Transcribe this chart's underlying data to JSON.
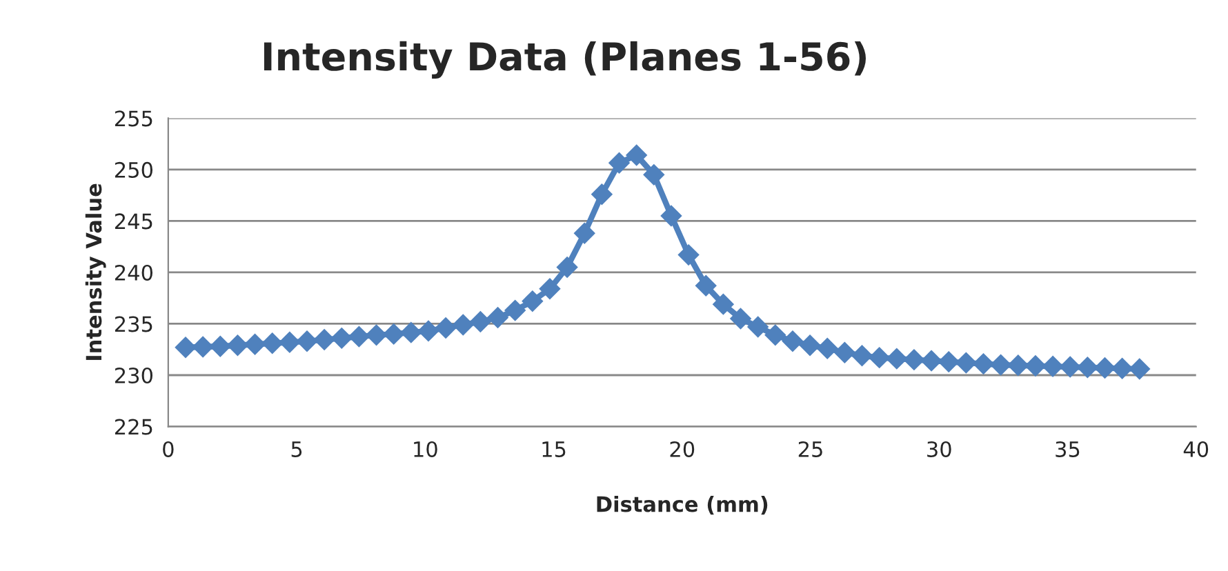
{
  "chart_data": {
    "type": "line",
    "title": "Intensity Data (Planes 1-56)",
    "xlabel": "Distance (mm)",
    "ylabel": "Intensity Value",
    "x": [
      0.675,
      1.35,
      2.025,
      2.7,
      3.375,
      4.05,
      4.725,
      5.4,
      6.075,
      6.75,
      7.425,
      8.1,
      8.775,
      9.45,
      10.125,
      10.8,
      11.475,
      12.15,
      12.825,
      13.5,
      14.175,
      14.85,
      15.525,
      16.2,
      16.875,
      17.55,
      18.225,
      18.9,
      19.575,
      20.25,
      20.925,
      21.6,
      22.275,
      22.95,
      23.625,
      24.3,
      24.975,
      25.65,
      26.325,
      27.0,
      27.675,
      28.35,
      29.025,
      29.7,
      30.375,
      31.05,
      31.725,
      32.4,
      33.075,
      33.75,
      34.425,
      35.1,
      35.775,
      36.45,
      37.125,
      37.8
    ],
    "series": [
      {
        "color": "#4f81bd",
        "values": [
          232.7,
          232.75,
          232.8,
          232.9,
          233.0,
          233.1,
          233.2,
          233.3,
          233.45,
          233.6,
          233.75,
          233.9,
          234.0,
          234.15,
          234.3,
          234.6,
          234.9,
          235.2,
          235.6,
          236.3,
          237.2,
          238.4,
          240.5,
          243.8,
          247.6,
          250.65,
          251.4,
          249.5,
          245.5,
          241.7,
          238.7,
          236.9,
          235.5,
          234.7,
          233.9,
          233.3,
          232.9,
          232.6,
          232.2,
          231.9,
          231.7,
          231.6,
          231.5,
          231.4,
          231.3,
          231.2,
          231.1,
          231.0,
          230.95,
          230.9,
          230.85,
          230.8,
          230.75,
          230.7,
          230.65,
          230.6
        ]
      }
    ],
    "xlim": [
      0,
      40
    ],
    "xticks": [
      0,
      5,
      10,
      15,
      20,
      25,
      30,
      35,
      40
    ],
    "ylim": [
      225,
      255
    ],
    "yticks": [
      225,
      230,
      235,
      240,
      245,
      250,
      255
    ],
    "grid": "y",
    "legend": false,
    "marker": "diamond",
    "line_style": "solid"
  }
}
